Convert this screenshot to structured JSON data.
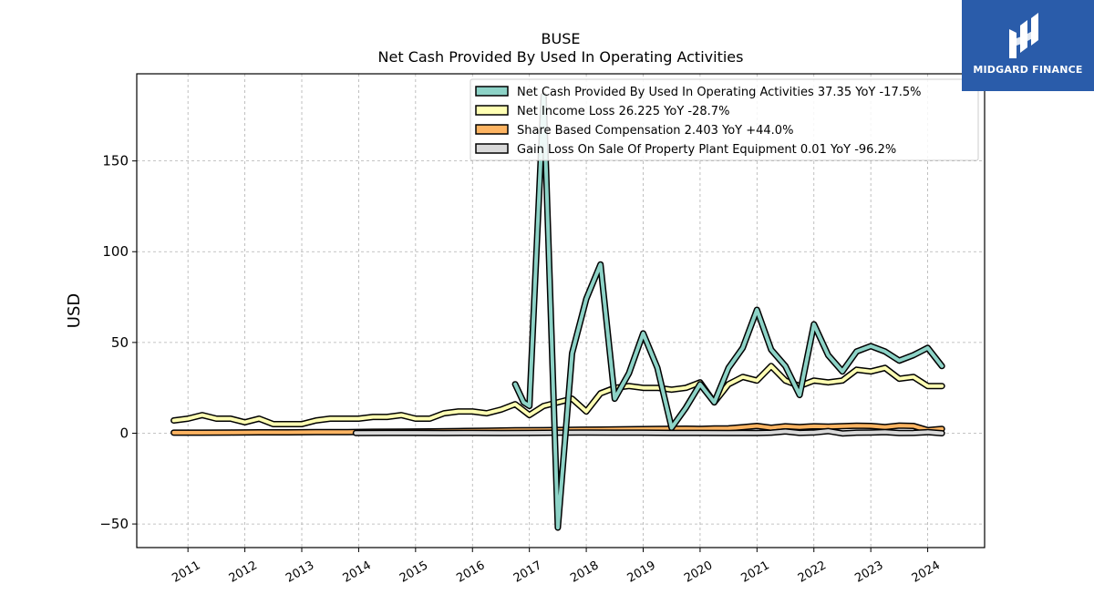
{
  "brand": {
    "name": "MIDGARD FINANCE",
    "bg_color": "#2a5caa"
  },
  "chart_data": {
    "type": "line",
    "title": "BUSE",
    "subtitle": "Net Cash Provided By Used In Operating Activities",
    "xlabel": "",
    "ylabel": "USD",
    "ylim": [
      -63,
      198
    ],
    "xlim": [
      2010.1,
      2025.0
    ],
    "x_ticks": [
      "2011",
      "2012",
      "2013",
      "2014",
      "2015",
      "2016",
      "2017",
      "2018",
      "2019",
      "2020",
      "2021",
      "2022",
      "2023",
      "2024"
    ],
    "y_ticks": [
      -50,
      0,
      50,
      100,
      150
    ],
    "grid": true,
    "legend_position": "top-right",
    "series": [
      {
        "name": "Net Cash Provided By Used In Operating Activities",
        "legend": "Net Cash Provided By Used In Operating Activities  37.35 YoY -17.5%",
        "color": "#8dd3c7",
        "points": [
          [
            2016.75,
            27
          ],
          [
            2016.9,
            17
          ],
          [
            2017.0,
            15
          ],
          [
            2017.25,
            186
          ],
          [
            2017.5,
            -52
          ],
          [
            2017.75,
            44
          ],
          [
            2018.0,
            74
          ],
          [
            2018.25,
            93
          ],
          [
            2018.5,
            19
          ],
          [
            2018.75,
            33
          ],
          [
            2019.0,
            55
          ],
          [
            2019.25,
            36
          ],
          [
            2019.5,
            3
          ],
          [
            2019.75,
            14
          ],
          [
            2020.0,
            27
          ],
          [
            2020.25,
            17
          ],
          [
            2020.5,
            36
          ],
          [
            2020.75,
            47
          ],
          [
            2021.0,
            68
          ],
          [
            2021.25,
            46
          ],
          [
            2021.5,
            37
          ],
          [
            2021.75,
            21
          ],
          [
            2022.0,
            60
          ],
          [
            2022.25,
            43
          ],
          [
            2022.5,
            34
          ],
          [
            2022.75,
            45
          ],
          [
            2023.0,
            48
          ],
          [
            2023.25,
            45
          ],
          [
            2023.5,
            40
          ],
          [
            2023.75,
            43
          ],
          [
            2024.0,
            47
          ],
          [
            2024.25,
            37
          ]
        ]
      },
      {
        "name": "Net Income Loss",
        "legend": "Net Income Loss  26.225 YoY -28.7%",
        "color": "#ffffb3",
        "points": [
          [
            2010.75,
            7
          ],
          [
            2011.0,
            8
          ],
          [
            2011.25,
            10
          ],
          [
            2011.5,
            8
          ],
          [
            2011.75,
            8
          ],
          [
            2012.0,
            6
          ],
          [
            2012.25,
            8
          ],
          [
            2012.5,
            5
          ],
          [
            2012.75,
            5
          ],
          [
            2013.0,
            5
          ],
          [
            2013.25,
            7
          ],
          [
            2013.5,
            8
          ],
          [
            2013.75,
            8
          ],
          [
            2014.0,
            8
          ],
          [
            2014.25,
            9
          ],
          [
            2014.5,
            9
          ],
          [
            2014.75,
            10
          ],
          [
            2015.0,
            8
          ],
          [
            2015.25,
            8
          ],
          [
            2015.5,
            11
          ],
          [
            2015.75,
            12
          ],
          [
            2016.0,
            12
          ],
          [
            2016.25,
            11
          ],
          [
            2016.5,
            13
          ],
          [
            2016.75,
            16
          ],
          [
            2017.0,
            10
          ],
          [
            2017.25,
            15
          ],
          [
            2017.5,
            17
          ],
          [
            2017.75,
            19
          ],
          [
            2018.0,
            12
          ],
          [
            2018.25,
            22
          ],
          [
            2018.5,
            25
          ],
          [
            2018.75,
            26
          ],
          [
            2019.0,
            25
          ],
          [
            2019.25,
            25
          ],
          [
            2019.5,
            24
          ],
          [
            2019.75,
            25
          ],
          [
            2020.0,
            28
          ],
          [
            2020.25,
            17
          ],
          [
            2020.5,
            27
          ],
          [
            2020.75,
            31
          ],
          [
            2021.0,
            29
          ],
          [
            2021.25,
            37
          ],
          [
            2021.5,
            29
          ],
          [
            2021.75,
            26
          ],
          [
            2022.0,
            29
          ],
          [
            2022.25,
            28
          ],
          [
            2022.5,
            29
          ],
          [
            2022.75,
            35
          ],
          [
            2023.0,
            34
          ],
          [
            2023.25,
            36
          ],
          [
            2023.5,
            30
          ],
          [
            2023.75,
            31
          ],
          [
            2024.0,
            26
          ],
          [
            2024.25,
            26
          ]
        ]
      },
      {
        "name": "Share Based Compensation",
        "legend": "Share Based Compensation  2.403 YoY +44.0%",
        "color": "#fdb462",
        "points": [
          [
            2010.75,
            0.3
          ],
          [
            2011.25,
            0.3
          ],
          [
            2011.75,
            0.4
          ],
          [
            2012.25,
            0.5
          ],
          [
            2012.75,
            0.5
          ],
          [
            2013.25,
            0.6
          ],
          [
            2013.75,
            0.6
          ],
          [
            2014.25,
            0.8
          ],
          [
            2014.75,
            0.9
          ],
          [
            2015.25,
            1.0
          ],
          [
            2015.75,
            1.2
          ],
          [
            2016.25,
            1.4
          ],
          [
            2016.75,
            1.6
          ],
          [
            2017.25,
            1.7
          ],
          [
            2017.75,
            1.9
          ],
          [
            2018.25,
            2.0
          ],
          [
            2018.75,
            2.2
          ],
          [
            2019.25,
            2.4
          ],
          [
            2019.75,
            2.5
          ],
          [
            2020.0,
            2.4
          ],
          [
            2020.25,
            2.6
          ],
          [
            2020.5,
            2.7
          ],
          [
            2020.75,
            3.3
          ],
          [
            2021.0,
            4.0
          ],
          [
            2021.25,
            3.0
          ],
          [
            2021.5,
            3.8
          ],
          [
            2021.75,
            3.4
          ],
          [
            2022.0,
            3.8
          ],
          [
            2022.25,
            3.6
          ],
          [
            2022.5,
            3.9
          ],
          [
            2022.75,
            4.1
          ],
          [
            2023.0,
            4.0
          ],
          [
            2023.25,
            3.4
          ],
          [
            2023.5,
            4.2
          ],
          [
            2023.75,
            4.0
          ],
          [
            2024.0,
            1.7
          ],
          [
            2024.25,
            2.4
          ]
        ]
      },
      {
        "name": "Gain Loss On Sale Of Property Plant Equipment",
        "legend": "Gain Loss On Sale Of Property Plant Equipment  0.01 YoY -96.2%",
        "color": "#d9d9d9",
        "points": [
          [
            2013.95,
            0.1
          ],
          [
            2014.5,
            0.2
          ],
          [
            2015.0,
            0.2
          ],
          [
            2015.5,
            0.1
          ],
          [
            2016.0,
            0.2
          ],
          [
            2016.5,
            0.1
          ],
          [
            2017.0,
            0.2
          ],
          [
            2017.5,
            0.3
          ],
          [
            2018.0,
            0.4
          ],
          [
            2018.5,
            0.3
          ],
          [
            2019.0,
            0.3
          ],
          [
            2019.5,
            0.2
          ],
          [
            2020.0,
            0.2
          ],
          [
            2020.5,
            0.1
          ],
          [
            2020.75,
            0.2
          ],
          [
            2021.0,
            0.1
          ],
          [
            2021.25,
            0.3
          ],
          [
            2021.5,
            1.0
          ],
          [
            2021.75,
            0.2
          ],
          [
            2022.0,
            0.4
          ],
          [
            2022.25,
            1.2
          ],
          [
            2022.5,
            -0.1
          ],
          [
            2022.75,
            0.3
          ],
          [
            2023.0,
            0.4
          ],
          [
            2023.25,
            0.6
          ],
          [
            2023.5,
            0.1
          ],
          [
            2023.75,
            0.2
          ],
          [
            2024.0,
            0.6
          ],
          [
            2024.25,
            0.01
          ]
        ]
      }
    ]
  }
}
